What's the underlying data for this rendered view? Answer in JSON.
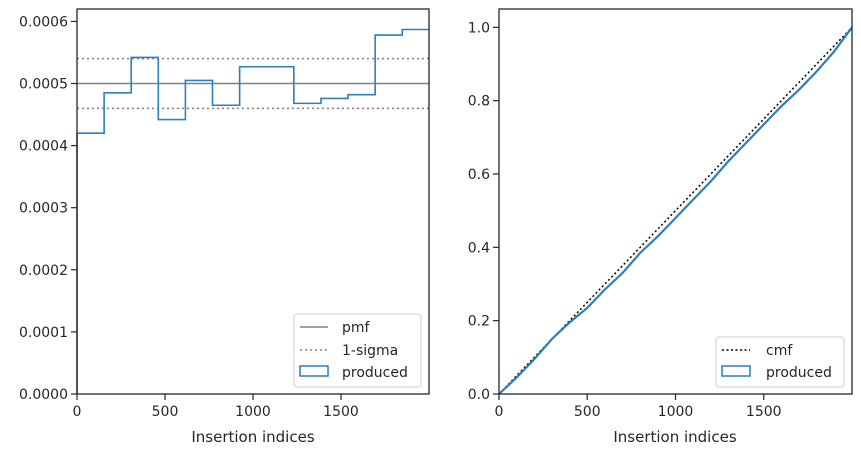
{
  "chart_data": [
    {
      "type": "step",
      "xlabel": "Insertion indices",
      "ylabel": "",
      "xlim": [
        0,
        2000
      ],
      "ylim": [
        0,
        0.00062
      ],
      "x_ticks": [
        "0",
        "500",
        "1000",
        "1500"
      ],
      "x_tick_values": [
        0,
        500,
        1000,
        1500
      ],
      "y_ticks": [
        "0.0000",
        "0.0001",
        "0.0002",
        "0.0003",
        "0.0004",
        "0.0005",
        "0.0006"
      ],
      "y_tick_values": [
        0,
        0.0001,
        0.0002,
        0.0003,
        0.0004,
        0.0005,
        0.0006
      ],
      "pmf": 0.0005,
      "sigma_lower": 0.00046,
      "sigma_upper": 0.00054,
      "produced": {
        "bin_edges": [
          0,
          154,
          308,
          462,
          616,
          770,
          924,
          1078,
          1232,
          1386,
          1540,
          1694,
          1848,
          2000
        ],
        "values": [
          0.00042,
          0.000485,
          0.000542,
          0.000442,
          0.000505,
          0.000465,
          0.000527,
          0.000527,
          0.000468,
          0.000476,
          0.000482,
          0.000578,
          0.000587
        ]
      },
      "legend": {
        "position": "lower-right",
        "entries": [
          "pmf",
          "1-sigma",
          "produced"
        ]
      },
      "colors": {
        "pmf": "#808080",
        "sigma": "#808080",
        "produced": "#2c7fb8",
        "axes": "#262626"
      }
    },
    {
      "type": "line",
      "xlabel": "Insertion indices",
      "ylabel": "",
      "xlim": [
        0,
        2000
      ],
      "ylim": [
        0,
        1.05
      ],
      "x_ticks": [
        "0",
        "500",
        "1000",
        "1500"
      ],
      "x_tick_values": [
        0,
        500,
        1000,
        1500
      ],
      "y_ticks": [
        "0.0",
        "0.2",
        "0.4",
        "0.6",
        "0.8",
        "1.0"
      ],
      "y_tick_values": [
        0,
        0.2,
        0.4,
        0.6,
        0.8,
        1.0
      ],
      "cmf": {
        "x": [
          0,
          2000
        ],
        "y": [
          0,
          1.0
        ]
      },
      "produced": {
        "x": [
          0,
          100,
          200,
          300,
          400,
          500,
          600,
          700,
          800,
          900,
          1000,
          1100,
          1200,
          1300,
          1400,
          1500,
          1600,
          1700,
          1800,
          1900,
          2000
        ],
        "y": [
          0,
          0.045,
          0.095,
          0.15,
          0.195,
          0.235,
          0.285,
          0.33,
          0.385,
          0.43,
          0.48,
          0.53,
          0.58,
          0.635,
          0.685,
          0.735,
          0.785,
          0.83,
          0.88,
          0.935,
          1.0
        ]
      },
      "legend": {
        "position": "lower-right",
        "entries": [
          "cmf",
          "produced"
        ]
      },
      "colors": {
        "cmf": "#000000",
        "produced": "#2c7fb8",
        "axes": "#262626"
      }
    }
  ]
}
